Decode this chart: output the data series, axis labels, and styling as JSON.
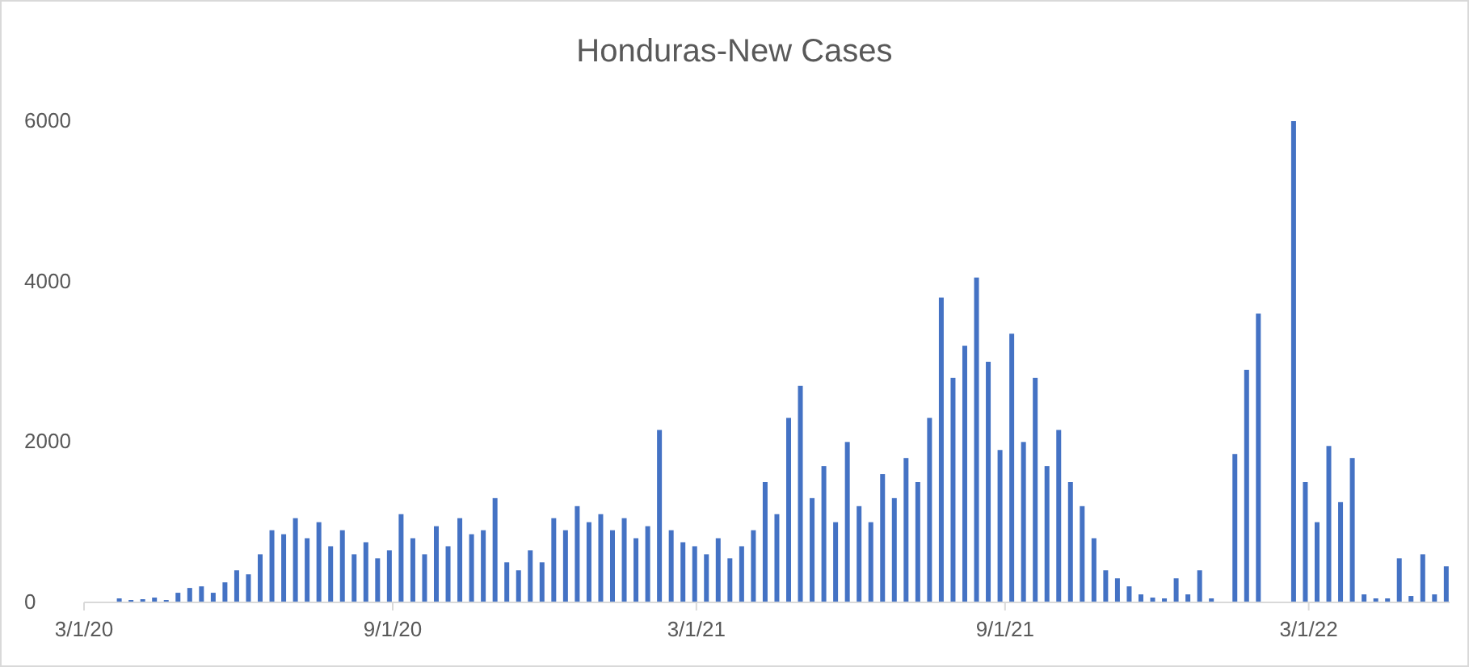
{
  "chart_data": {
    "type": "bar",
    "title": "Honduras-New Cases",
    "x": [
      "2020-03-01",
      "2020-03-08",
      "2020-03-22",
      "2020-03-29",
      "2020-04-05",
      "2020-04-12",
      "2020-04-19",
      "2020-04-26",
      "2020-05-03",
      "2020-05-10",
      "2020-05-17",
      "2020-05-24",
      "2020-05-31",
      "2020-06-07",
      "2020-06-14",
      "2020-06-21",
      "2020-06-28",
      "2020-07-05",
      "2020-07-12",
      "2020-07-19",
      "2020-07-26",
      "2020-08-02",
      "2020-08-09",
      "2020-08-16",
      "2020-08-23",
      "2020-08-30",
      "2020-09-06",
      "2020-09-13",
      "2020-09-20",
      "2020-09-27",
      "2020-10-04",
      "2020-10-11",
      "2020-10-18",
      "2020-10-25",
      "2020-11-01",
      "2020-11-08",
      "2020-11-15",
      "2020-11-22",
      "2020-11-29",
      "2020-12-06",
      "2020-12-13",
      "2020-12-20",
      "2020-12-27",
      "2021-01-03",
      "2021-01-10",
      "2021-01-17",
      "2021-01-24",
      "2021-01-31",
      "2021-02-07",
      "2021-02-14",
      "2021-02-21",
      "2021-02-28",
      "2021-03-07",
      "2021-03-14",
      "2021-03-21",
      "2021-03-28",
      "2021-04-04",
      "2021-04-11",
      "2021-04-18",
      "2021-04-25",
      "2021-05-02",
      "2021-05-09",
      "2021-05-16",
      "2021-05-23",
      "2021-05-30",
      "2021-06-06",
      "2021-06-13",
      "2021-06-20",
      "2021-06-27",
      "2021-07-04",
      "2021-07-11",
      "2021-07-18",
      "2021-07-25",
      "2021-08-01",
      "2021-08-08",
      "2021-08-15",
      "2021-08-22",
      "2021-08-29",
      "2021-09-05",
      "2021-09-12",
      "2021-09-19",
      "2021-09-26",
      "2021-10-03",
      "2021-10-10",
      "2021-10-17",
      "2021-10-24",
      "2021-10-31",
      "2021-11-07",
      "2021-11-14",
      "2021-11-21",
      "2021-11-28",
      "2021-12-05",
      "2021-12-12",
      "2021-12-19",
      "2021-12-26",
      "2022-01-02",
      "2022-01-16",
      "2022-01-23",
      "2022-01-30",
      "2022-02-20",
      "2022-02-27",
      "2022-03-06",
      "2022-03-13",
      "2022-03-20",
      "2022-03-27",
      "2022-04-03",
      "2022-04-10",
      "2022-04-17",
      "2022-04-24",
      "2022-05-01",
      "2022-05-08",
      "2022-05-15",
      "2022-05-22"
    ],
    "values": [
      0,
      0,
      50,
      30,
      40,
      60,
      30,
      120,
      180,
      200,
      120,
      250,
      400,
      350,
      600,
      900,
      850,
      1050,
      800,
      1000,
      700,
      900,
      600,
      750,
      550,
      650,
      1100,
      800,
      600,
      950,
      700,
      1050,
      850,
      900,
      1300,
      500,
      400,
      650,
      500,
      1050,
      900,
      1200,
      1000,
      1100,
      900,
      1050,
      800,
      950,
      2150,
      900,
      750,
      700,
      600,
      800,
      550,
      700,
      900,
      1500,
      1100,
      2300,
      2700,
      1300,
      1700,
      1000,
      2000,
      1200,
      1000,
      1600,
      1300,
      1800,
      1500,
      2300,
      3800,
      2800,
      3200,
      4050,
      3000,
      1900,
      3350,
      2000,
      2800,
      1700,
      2150,
      1500,
      1200,
      800,
      400,
      300,
      200,
      100,
      60,
      50,
      300,
      100,
      400,
      50,
      1850,
      2900,
      3600,
      6000,
      1500,
      1000,
      1950,
      1250,
      1800,
      100,
      50,
      50,
      550,
      80,
      600,
      100,
      450
    ],
    "color": "#4472c4",
    "xlim": [
      "2020-03-01",
      "2022-05-24"
    ],
    "xticks": [
      {
        "value": "2020-03-01",
        "label": "3/1/20"
      },
      {
        "value": "2020-09-01",
        "label": "9/1/20"
      },
      {
        "value": "2021-03-01",
        "label": "3/1/21"
      },
      {
        "value": "2021-09-01",
        "label": "9/1/21"
      },
      {
        "value": "2022-03-01",
        "label": "3/1/22"
      }
    ],
    "ylim": [
      0,
      6000
    ],
    "yticks": [
      0,
      2000,
      4000,
      6000
    ]
  }
}
